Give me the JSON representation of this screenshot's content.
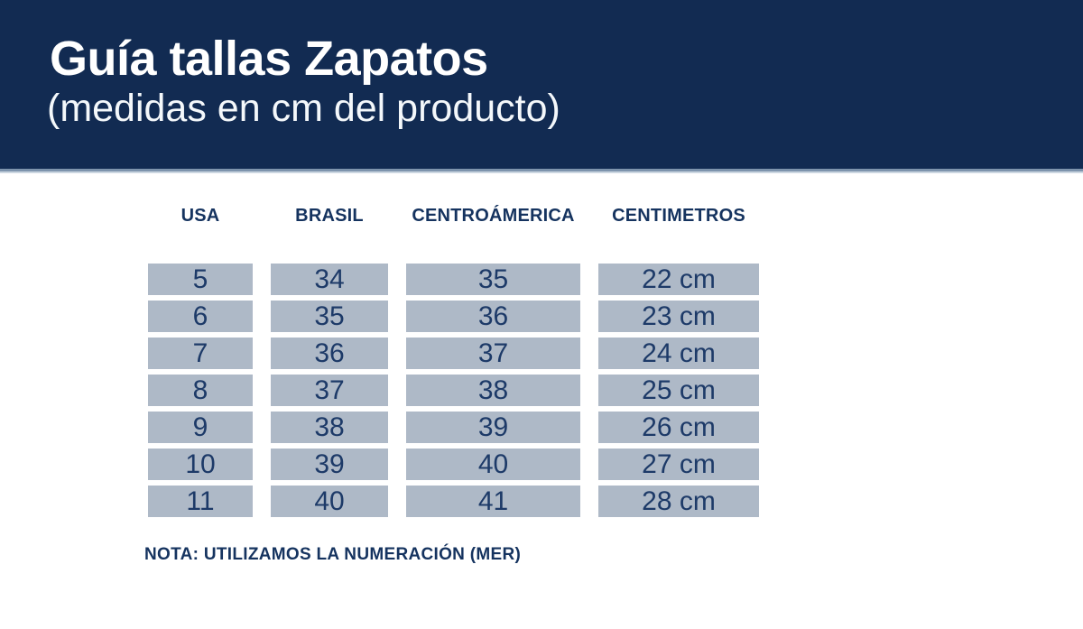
{
  "header": {
    "title": "Guía tallas Zapatos",
    "subtitle": "(medidas en cm del producto)"
  },
  "table": {
    "columns": [
      "USA",
      "BRASIL",
      "CENTROÁMERICA",
      "CENTIMETROS"
    ],
    "rows": [
      [
        "5",
        "34",
        "35",
        "22 cm"
      ],
      [
        "6",
        "35",
        "36",
        "23 cm"
      ],
      [
        "7",
        "36",
        "37",
        "24 cm"
      ],
      [
        "8",
        "37",
        "38",
        "25 cm"
      ],
      [
        "9",
        "38",
        "39",
        "26 cm"
      ],
      [
        "10",
        "39",
        "40",
        "27 cm"
      ],
      [
        "11",
        "40",
        "41",
        "28 cm"
      ]
    ]
  },
  "note": "NOTA: UTILIZAMOS LA NUMERACIÓN (MER)",
  "colors": {
    "banner": "#122b52",
    "banner_border": "#7e94ad",
    "banner_edge": "#ccd7e1",
    "title_text": "#ffffff",
    "subtitle_text": "#f4f8fb",
    "text_navy": "#15335f",
    "cell_bg": "#aeb9c7",
    "cell_text": "#1d3a68"
  }
}
